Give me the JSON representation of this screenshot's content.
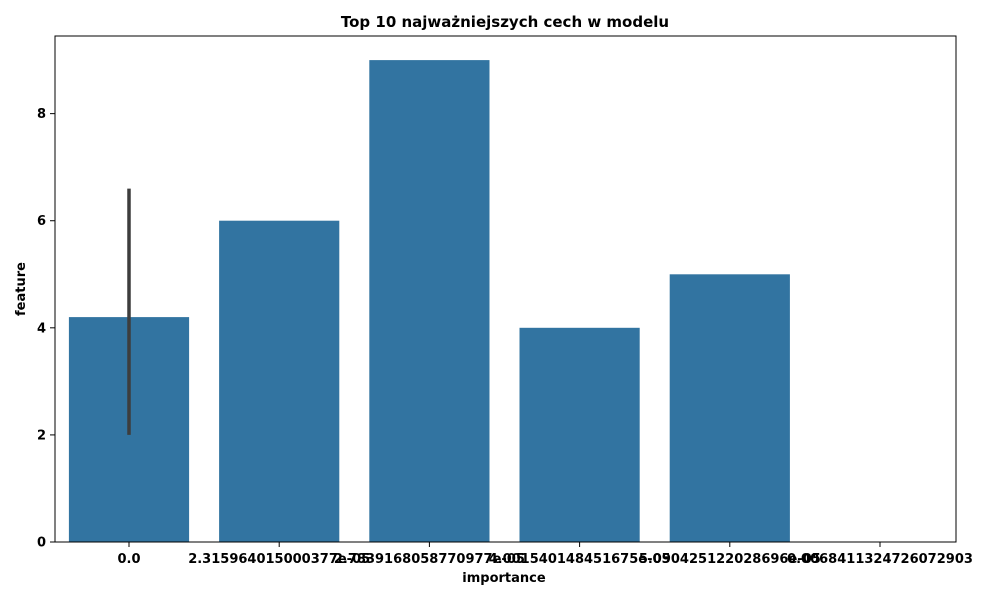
{
  "chart_data": {
    "type": "bar",
    "title": "Top 10 najważniejszych cech w modelu",
    "xlabel": "importance",
    "ylabel": "feature",
    "categories": [
      "0.0",
      "2.315964015000377e-05",
      "2.7839168058770977e-05",
      "4.001540148451675e-05",
      "5.090425122028696e-05",
      "0.0068411324726072903"
    ],
    "values": [
      4.2,
      6,
      9,
      4,
      5,
      0
    ],
    "error_bar": {
      "category": "0.0",
      "low": 2.0,
      "high": 6.6
    },
    "ylim": [
      0,
      9.45
    ],
    "yticks": [
      0,
      2,
      4,
      6,
      8
    ],
    "grid": false,
    "bar_color": "#3274a1",
    "errorbar_color": "#3d3d3d"
  }
}
